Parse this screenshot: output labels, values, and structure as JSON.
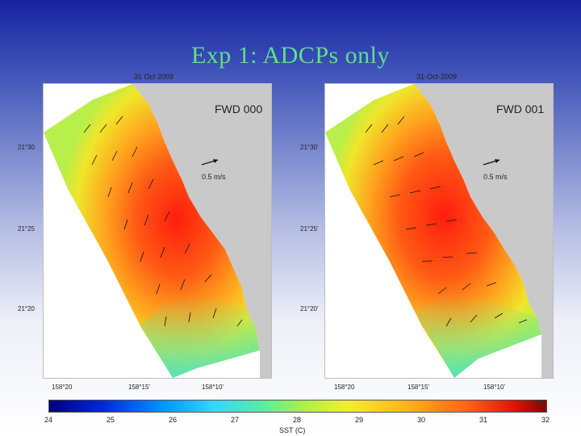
{
  "slide": {
    "title": "Exp 1: ADCPs only"
  },
  "maps": [
    {
      "date": "31 Oct 2009",
      "run_label": "FWD 000"
    },
    {
      "date": "31-Oct-2009",
      "run_label": "FWD 001"
    }
  ],
  "velocity_scale": "0.5 m/s",
  "latitude_labels_left": [
    "21°30",
    "21°25",
    "21°20"
  ],
  "latitude_labels_right": [
    "21°30'",
    "21°25'",
    "21°20'"
  ],
  "longitude_labels_left": [
    "158°20",
    "158°15'",
    "158°10'"
  ],
  "longitude_labels_right": [
    "158°20",
    "158°15'",
    "158°10'"
  ],
  "colorbar": {
    "label": "SST (C)",
    "ticks": [
      "24",
      "25",
      "26",
      "27",
      "28",
      "29",
      "30",
      "31",
      "32"
    ],
    "range": [
      24,
      32
    ],
    "corner_text": "18",
    "colors": [
      "#000079",
      "#0028e0",
      "#0096ff",
      "#37d4ff",
      "#59eda0",
      "#a9f04c",
      "#f2f02a",
      "#ffb21d",
      "#ff6316",
      "#e6160a",
      "#8a0000"
    ]
  },
  "land_color": "#c9c9c9"
}
